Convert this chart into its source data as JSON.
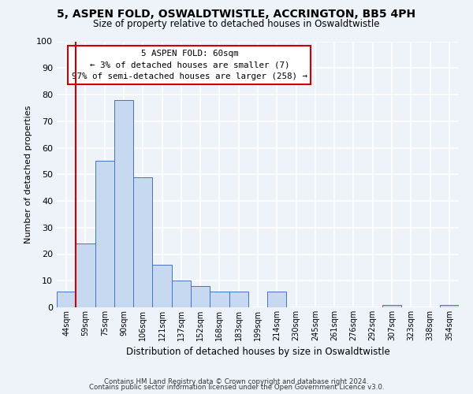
{
  "title": "5, ASPEN FOLD, OSWALDTWISTLE, ACCRINGTON, BB5 4PH",
  "subtitle": "Size of property relative to detached houses in Oswaldtwistle",
  "xlabel": "Distribution of detached houses by size in Oswaldtwistle",
  "ylabel": "Number of detached properties",
  "bin_labels": [
    "44sqm",
    "59sqm",
    "75sqm",
    "90sqm",
    "106sqm",
    "121sqm",
    "137sqm",
    "152sqm",
    "168sqm",
    "183sqm",
    "199sqm",
    "214sqm",
    "230sqm",
    "245sqm",
    "261sqm",
    "276sqm",
    "292sqm",
    "307sqm",
    "323sqm",
    "338sqm",
    "354sqm"
  ],
  "bar_heights": [
    6,
    24,
    55,
    78,
    49,
    16,
    10,
    8,
    6,
    6,
    0,
    6,
    0,
    0,
    0,
    0,
    0,
    1,
    0,
    0,
    1
  ],
  "bar_color": "#c6d9f1",
  "bar_edge_color": "#4472c4",
  "vline_color": "#cc0000",
  "vline_x_bar_index": 1,
  "ylim": [
    0,
    100
  ],
  "annotation_title": "5 ASPEN FOLD: 60sqm",
  "annotation_line1": "← 3% of detached houses are smaller (7)",
  "annotation_line2": "97% of semi-detached houses are larger (258) →",
  "annotation_box_color": "#ffffff",
  "annotation_box_edge": "#cc0000",
  "footer1": "Contains HM Land Registry data © Crown copyright and database right 2024.",
  "footer2": "Contains public sector information licensed under the Open Government Licence v3.0.",
  "background_color": "#eef2f9",
  "plot_bg_color": "#eef2f9",
  "grid_color": "#ffffff"
}
